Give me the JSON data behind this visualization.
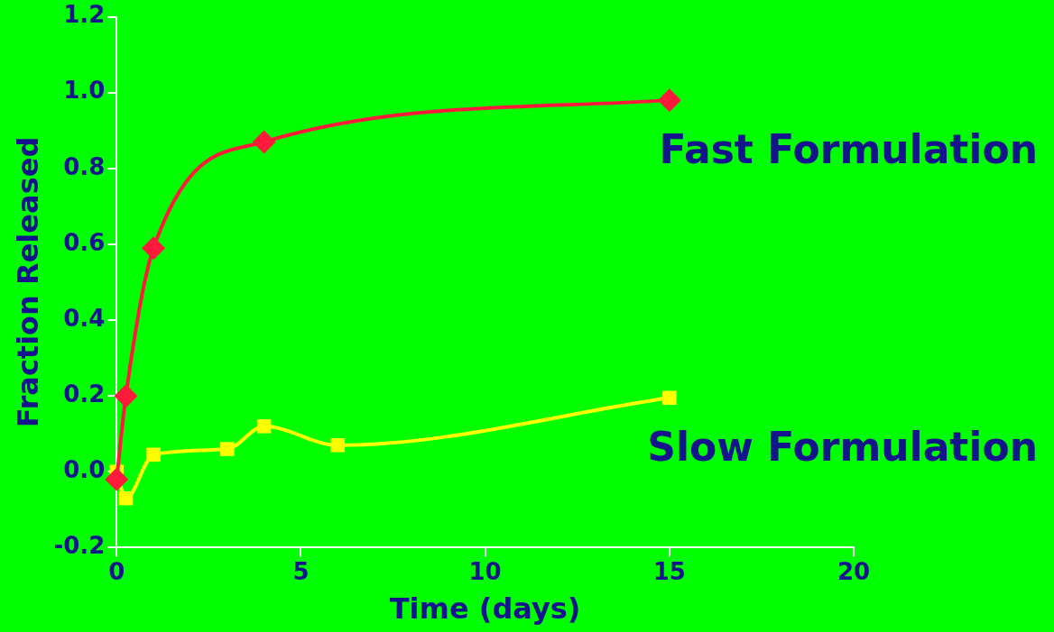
{
  "chart_data": {
    "type": "line",
    "xlabel": "Time (days)",
    "ylabel": "Fraction Released",
    "xlim": [
      0,
      20
    ],
    "xticks": [
      0,
      5,
      10,
      15,
      20
    ],
    "ylim": [
      -0.2,
      1.2
    ],
    "yticks": [
      {
        "value": -0.2,
        "label": "-0.2"
      },
      {
        "value": 0,
        "label": "0.0"
      },
      {
        "value": 0.2,
        "label": "0.2"
      },
      {
        "value": 0.4,
        "label": "0.4"
      },
      {
        "value": 0.6,
        "label": "0.6"
      },
      {
        "value": 0.8,
        "label": "0.8"
      },
      {
        "value": 1,
        "label": "1.0"
      },
      {
        "value": 1.2,
        "label": "1.2"
      }
    ],
    "grid": false,
    "legend": false,
    "line_style": "solid",
    "series": [
      {
        "name": "Fast Formulation",
        "color": "#ff1a3c",
        "marker": "diamond",
        "x": [
          0,
          0.25,
          1,
          4,
          15
        ],
        "values": [
          -0.02,
          0.2,
          0.59,
          0.87,
          0.98
        ]
      },
      {
        "name": "Slow Formulation",
        "color": "#ffff00",
        "marker": "square",
        "x": [
          0,
          0.25,
          1,
          3,
          4,
          6,
          15
        ],
        "values": [
          0,
          -0.07,
          0.045,
          0.06,
          0.12,
          0.07,
          0.195
        ]
      }
    ]
  }
}
